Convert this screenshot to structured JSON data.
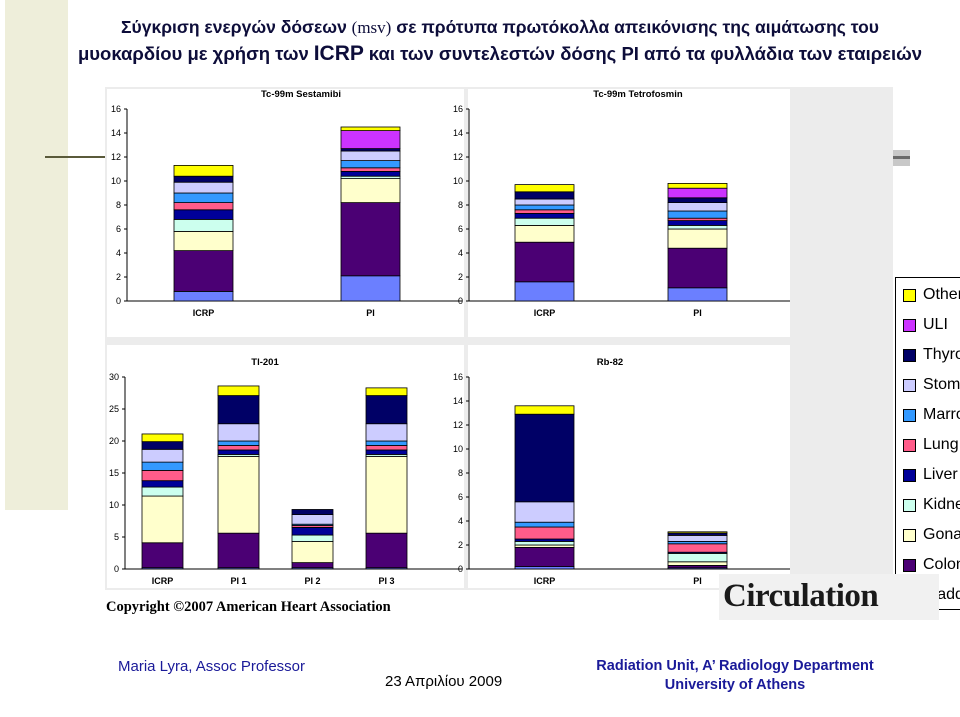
{
  "slide": {
    "title_line1_part1": "Σύγκριση ενεργών δόσεων",
    "title_unit": "(msv)",
    "title_line1_part2": "σε πρότυπα πρωτόκολλα απεικόνισης της αιμάτωσης του",
    "title_line2_part1": "μυοκαρδίου με χρήση των",
    "title_icrp": "ICRP",
    "title_line2_part2": "και των συντελεστών δόσης PI από τα φυλλάδια των εταιρειών",
    "copyright": "Copyright ©2007 American Heart Association",
    "logo_text": "Circulation",
    "footer_left": "Maria Lyra, Assoc Professor",
    "footer_date": "23 Απριλίου 2009",
    "footer_right_line1": "Radiation Unit, A’ Radiology Department",
    "footer_right_line2": "University of Athens"
  },
  "legend": [
    {
      "label": "Other",
      "color": "#ffff00"
    },
    {
      "label": "ULI",
      "color": "#cc33ff"
    },
    {
      "label": "Thyroid",
      "color": "#000066"
    },
    {
      "label": "Stomach",
      "color": "#ccccff"
    },
    {
      "label": "Marrow",
      "color": "#3399ff"
    },
    {
      "label": "Lung",
      "color": "#ff5c8a"
    },
    {
      "label": "Liver",
      "color": "#000099"
    },
    {
      "label": "Kidney",
      "color": "#ccffee"
    },
    {
      "label": "Gonads",
      "color": "#ffffcc"
    },
    {
      "label": "Colon",
      "color": "#4b0074"
    },
    {
      "label": "Bladder",
      "color": "#6b7fff"
    }
  ],
  "chart_data": [
    {
      "type": "bar",
      "stacked": true,
      "title": "Tc-99m Sestamibi",
      "ylim": [
        0,
        16
      ],
      "yticks": [
        0,
        2,
        4,
        6,
        8,
        10,
        12,
        14,
        16
      ],
      "categories": [
        "ICRP",
        "PI"
      ],
      "series": [
        {
          "name": "Bladder",
          "values": [
            0.8,
            2.1
          ]
        },
        {
          "name": "Colon",
          "values": [
            3.4,
            6.1
          ]
        },
        {
          "name": "Gonads",
          "values": [
            1.6,
            2.0
          ]
        },
        {
          "name": "Kidney",
          "values": [
            1.0,
            0.2
          ]
        },
        {
          "name": "Liver",
          "values": [
            0.8,
            0.4
          ]
        },
        {
          "name": "Lung",
          "values": [
            0.6,
            0.3
          ]
        },
        {
          "name": "Marrow",
          "values": [
            0.8,
            0.6
          ]
        },
        {
          "name": "Stomach",
          "values": [
            0.9,
            0.8
          ]
        },
        {
          "name": "Thyroid",
          "values": [
            0.5,
            0.2
          ]
        },
        {
          "name": "ULI",
          "values": [
            0,
            1.5
          ]
        },
        {
          "name": "Other",
          "values": [
            0.9,
            0.3
          ]
        }
      ]
    },
    {
      "type": "bar",
      "stacked": true,
      "title": "Tc-99m Tetrofosmin",
      "ylim": [
        0,
        16
      ],
      "yticks": [
        0,
        2,
        4,
        6,
        8,
        10,
        12,
        14,
        16
      ],
      "categories": [
        "ICRP",
        "PI"
      ],
      "series": [
        {
          "name": "Bladder",
          "values": [
            1.6,
            1.1
          ]
        },
        {
          "name": "Colon",
          "values": [
            3.3,
            3.3
          ]
        },
        {
          "name": "Gonads",
          "values": [
            1.4,
            1.6
          ]
        },
        {
          "name": "Kidney",
          "values": [
            0.6,
            0.3
          ]
        },
        {
          "name": "Liver",
          "values": [
            0.4,
            0.4
          ]
        },
        {
          "name": "Lung",
          "values": [
            0.3,
            0.2
          ]
        },
        {
          "name": "Marrow",
          "values": [
            0.4,
            0.6
          ]
        },
        {
          "name": "Stomach",
          "values": [
            0.5,
            0.7
          ]
        },
        {
          "name": "Thyroid",
          "values": [
            0.6,
            0.4
          ]
        },
        {
          "name": "ULI",
          "values": [
            0,
            0.8
          ]
        },
        {
          "name": "Other",
          "values": [
            0.6,
            0.4
          ]
        }
      ]
    },
    {
      "type": "bar",
      "stacked": true,
      "title": "Tl-201",
      "ylim": [
        0,
        30
      ],
      "yticks": [
        0,
        5,
        10,
        15,
        20,
        25,
        30
      ],
      "categories": [
        "ICRP",
        "PI 1",
        "PI 2",
        "PI 3"
      ],
      "series": [
        {
          "name": "Bladder",
          "values": [
            0.2,
            0.2,
            0.2,
            0.2
          ]
        },
        {
          "name": "Colon",
          "values": [
            3.9,
            5.4,
            0.8,
            5.4
          ]
        },
        {
          "name": "Gonads",
          "values": [
            7.3,
            12.0,
            3.3,
            12.0
          ]
        },
        {
          "name": "Kidney",
          "values": [
            1.4,
            0.3,
            1.0,
            0.3
          ]
        },
        {
          "name": "Liver",
          "values": [
            1.0,
            0.7,
            1.2,
            0.7
          ]
        },
        {
          "name": "Lung",
          "values": [
            1.6,
            0.7,
            0.3,
            0.7
          ]
        },
        {
          "name": "Marrow",
          "values": [
            1.3,
            0.7,
            0.2,
            0.7
          ]
        },
        {
          "name": "Stomach",
          "values": [
            2.0,
            2.7,
            1.5,
            2.7
          ]
        },
        {
          "name": "Thyroid",
          "values": [
            1.2,
            4.4,
            0.8,
            4.4
          ]
        },
        {
          "name": "ULI",
          "values": [
            0,
            0,
            0,
            0
          ]
        },
        {
          "name": "Other",
          "values": [
            1.2,
            1.5,
            0,
            1.2
          ]
        }
      ]
    },
    {
      "type": "bar",
      "stacked": true,
      "title": "Rb-82",
      "ylim": [
        0,
        16
      ],
      "yticks": [
        0,
        2,
        4,
        6,
        8,
        10,
        12,
        14,
        16
      ],
      "categories": [
        "ICRP",
        "PI"
      ],
      "series": [
        {
          "name": "Bladder",
          "values": [
            0.2,
            0.1
          ]
        },
        {
          "name": "Colon",
          "values": [
            1.6,
            0.2
          ]
        },
        {
          "name": "Gonads",
          "values": [
            0.2,
            0.3
          ]
        },
        {
          "name": "Kidney",
          "values": [
            0.3,
            0.7
          ]
        },
        {
          "name": "Liver",
          "values": [
            0.2,
            0.1
          ]
        },
        {
          "name": "Lung",
          "values": [
            1.0,
            0.7
          ]
        },
        {
          "name": "Marrow",
          "values": [
            0.4,
            0.2
          ]
        },
        {
          "name": "Stomach",
          "values": [
            1.7,
            0.5
          ]
        },
        {
          "name": "Thyroid",
          "values": [
            7.3,
            0.2
          ]
        },
        {
          "name": "ULI",
          "values": [
            0,
            0
          ]
        },
        {
          "name": "Other",
          "values": [
            0.7,
            0.1
          ]
        }
      ]
    }
  ]
}
